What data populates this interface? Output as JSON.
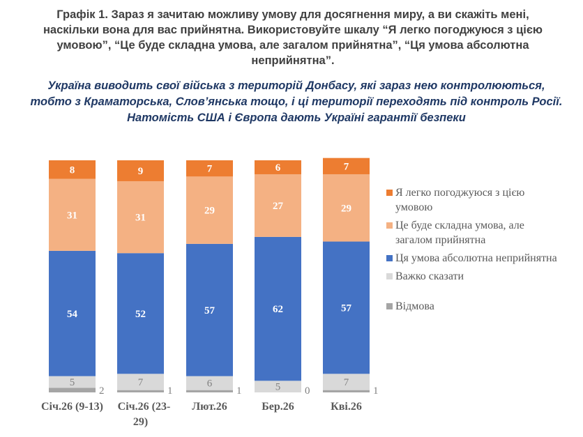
{
  "title_lines": [
    "Графік 1. Зараз я зачитаю можливу умову для досягнення миру, а ви скажіть мені,",
    "наскільки вона для вас прийнятна. Використовуйте шкалу “Я легко погоджуюся з цією",
    "умовою”, “Це буде складна умова, але загалом прийнятна”, “Ця умова абсолютна",
    "неприйнятна”."
  ],
  "subtitle_lines": [
    "Україна виводить свої війська з територій Донбасу, які зараз нею контролюються,",
    "тобто з Краматорська, Слов’янська тощо, і ці території переходять під контроль Росії.",
    "Натомість США і Європа дають Україні гарантії безпеки"
  ],
  "chart_data": {
    "type": "bar",
    "stacked": true,
    "orientation": "vertical",
    "categories": [
      "Січ.26 (9-13)",
      "Січ.26 (23-29)",
      "Лют.26",
      "Бер.26",
      "Кві.26"
    ],
    "series": [
      {
        "name": "Відмова",
        "color": "#a5a5a5",
        "values": [
          2,
          1,
          1,
          0,
          1
        ]
      },
      {
        "name": "Важко сказати",
        "color": "#d9d9d9",
        "values": [
          5,
          7,
          6,
          5,
          7
        ]
      },
      {
        "name": "Ця умова абсолютна неприйнятна",
        "color": "#4472c4",
        "values": [
          54,
          52,
          57,
          62,
          57
        ]
      },
      {
        "name": "Це буде складна умова, але загалом прийнятна",
        "color": "#f4b183",
        "values": [
          31,
          31,
          29,
          27,
          29
        ]
      },
      {
        "name": "Я легко погоджуюся з цією умовою",
        "color": "#ed7d31",
        "values": [
          8,
          9,
          7,
          6,
          7
        ]
      }
    ],
    "legend_order": [
      "Я легко погоджуюся з цією умовою",
      "Це буде складна умова, але загалом прийнятна",
      "Ця умова абсолютна неприйнятна",
      "Важко сказати",
      "Відмова"
    ],
    "legend_position": "right",
    "grid": false,
    "ylim": [
      0,
      100
    ]
  }
}
